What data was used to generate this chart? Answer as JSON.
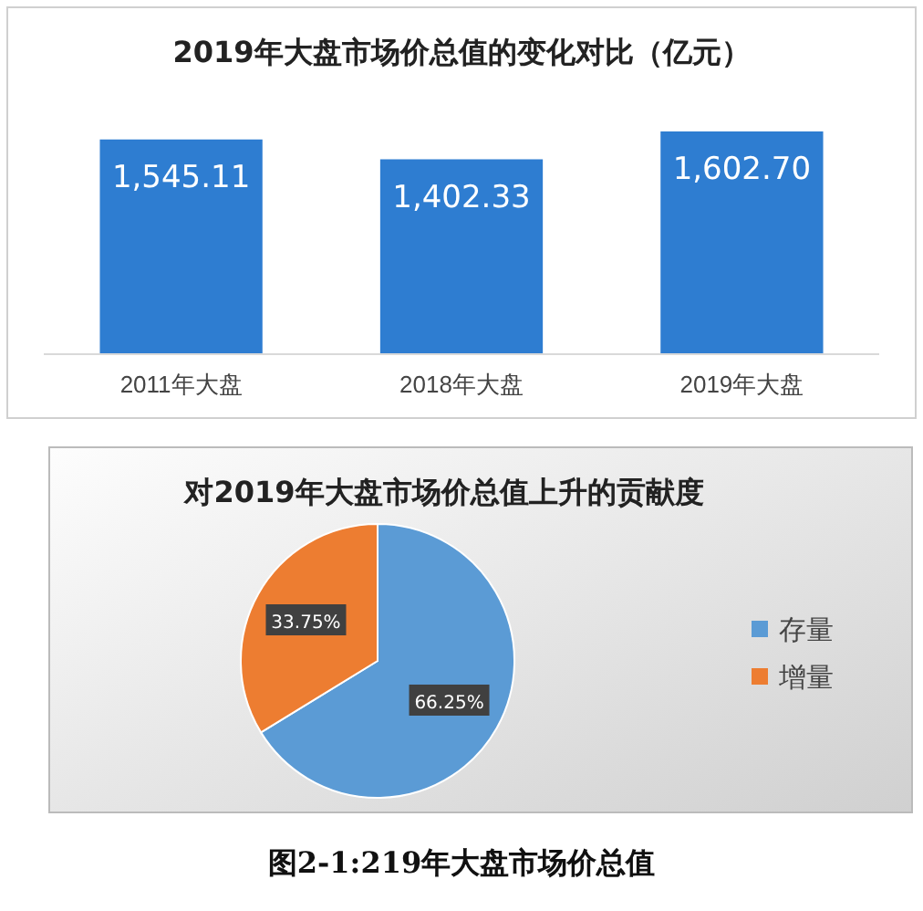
{
  "chart_data": [
    {
      "type": "bar",
      "title": "2019年大盘市场价总值的变化对比（亿元）",
      "categories": [
        "2011年大盘",
        "2018年大盘",
        "2019年大盘"
      ],
      "values": [
        1545.11,
        1402.33,
        1602.7
      ],
      "value_labels": [
        "1,545.11",
        "1,402.33",
        "1,602.70"
      ],
      "color": "#2e7dd1",
      "tick_labels": "x"
    },
    {
      "type": "pie",
      "title": "对2019年大盘市场价总值上升的贡献度",
      "categories": [
        "存量",
        "增量"
      ],
      "values": [
        66.25,
        33.75
      ],
      "value_labels": [
        "66.25%",
        "33.75%"
      ],
      "colors": [
        "#5b9bd5",
        "#ed7d31"
      ],
      "legend": "right",
      "annotations": [
        "图2-1:219年大盘市场价总值"
      ]
    }
  ]
}
